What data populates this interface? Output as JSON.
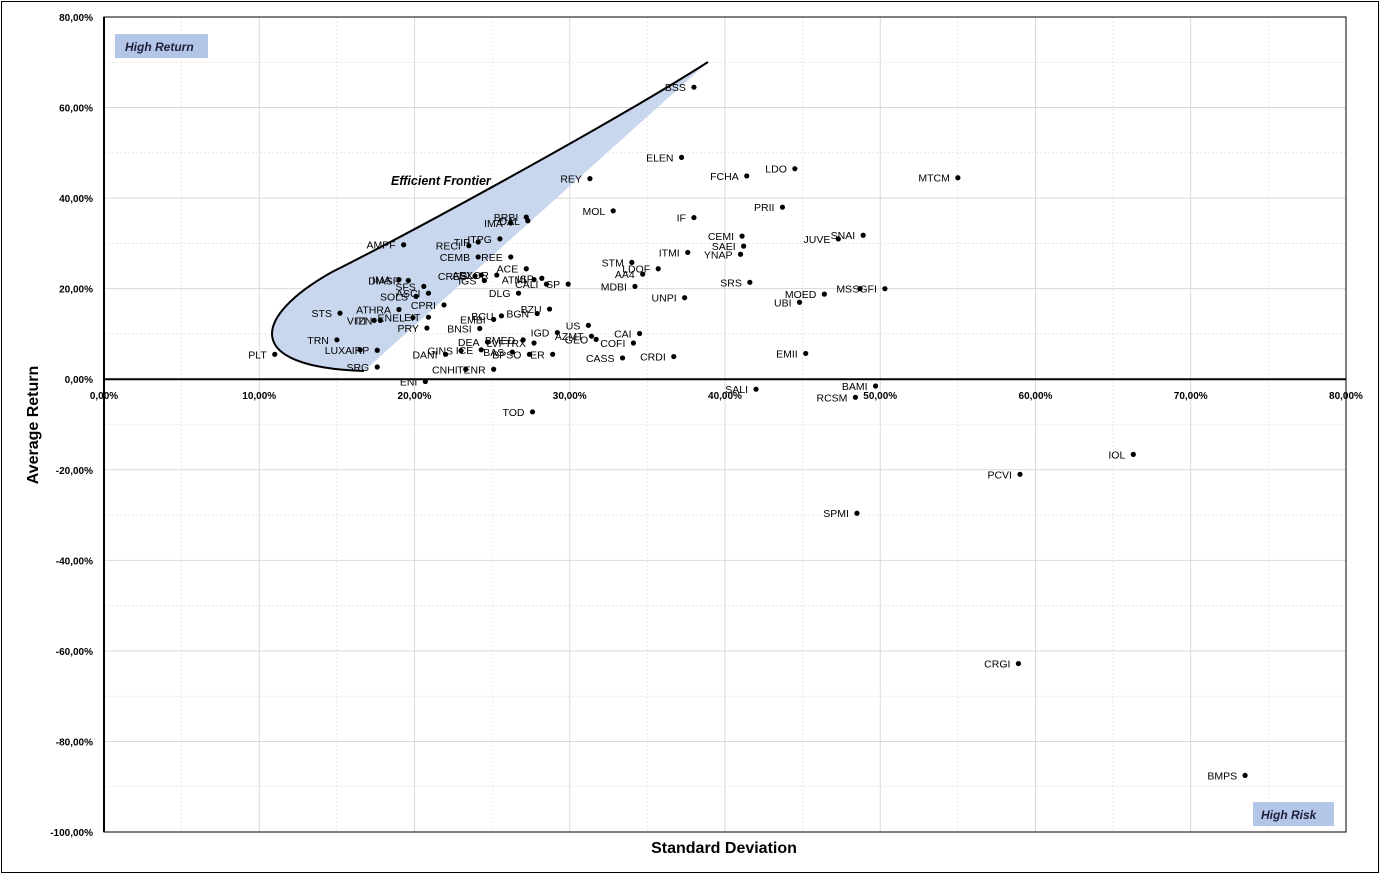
{
  "chart_data": {
    "type": "scatter",
    "xlabel": "Standard Deviation",
    "ylabel": "Average Return",
    "xlim": [
      0,
      0.8
    ],
    "ylim": [
      -1.0,
      0.8
    ],
    "x_ticks": [
      "0,00%",
      "10,00%",
      "20,00%",
      "30,00%",
      "40,00%",
      "50,00%",
      "60,00%",
      "70,00%",
      "80,00%"
    ],
    "y_ticks": [
      "80,00%",
      "60,00%",
      "40,00%",
      "20,00%",
      "0,00%",
      "-20,00%",
      "-40,00%",
      "-60,00%",
      "-80,00%",
      "-100,00%"
    ],
    "grid": true,
    "annotations": {
      "high_return": "High Return",
      "high_risk": "High Risk",
      "efficient_frontier": "Efficient Frontier"
    },
    "colors": {
      "frontier_fill": "#c9d7ee",
      "annotation_box": "#b4c6e7",
      "marker": "#000000",
      "grid": "#d9d9d9"
    },
    "points": [
      {
        "label": "BSS",
        "x": 0.38,
        "y": 0.645
      },
      {
        "label": "ELEN",
        "x": 0.372,
        "y": 0.49
      },
      {
        "label": "LDO",
        "x": 0.445,
        "y": 0.465
      },
      {
        "label": "FCHA",
        "x": 0.414,
        "y": 0.449
      },
      {
        "label": "REY",
        "x": 0.313,
        "y": 0.443
      },
      {
        "label": "MTCM",
        "x": 0.55,
        "y": 0.445
      },
      {
        "label": "MOL",
        "x": 0.328,
        "y": 0.372
      },
      {
        "label": "PRII",
        "x": 0.437,
        "y": 0.38
      },
      {
        "label": "IF",
        "x": 0.38,
        "y": 0.357
      },
      {
        "label": "BRBI",
        "x": 0.272,
        "y": 0.358
      },
      {
        "label": "IMA",
        "x": 0.262,
        "y": 0.345
      },
      {
        "label": "DAL",
        "x": 0.273,
        "y": 0.35
      },
      {
        "label": "AMPF",
        "x": 0.193,
        "y": 0.297
      },
      {
        "label": "TIP",
        "x": 0.241,
        "y": 0.303
      },
      {
        "label": "ITPG",
        "x": 0.255,
        "y": 0.31
      },
      {
        "label": "RECI",
        "x": 0.235,
        "y": 0.295
      },
      {
        "label": "CEMI",
        "x": 0.411,
        "y": 0.316
      },
      {
        "label": "JUVE",
        "x": 0.473,
        "y": 0.31
      },
      {
        "label": "SNAI",
        "x": 0.489,
        "y": 0.318
      },
      {
        "label": "SAEI",
        "x": 0.412,
        "y": 0.294
      },
      {
        "label": "CEMB",
        "x": 0.241,
        "y": 0.27
      },
      {
        "label": "REE",
        "x": 0.262,
        "y": 0.27
      },
      {
        "label": "ITMI",
        "x": 0.376,
        "y": 0.28
      },
      {
        "label": "YNAP",
        "x": 0.41,
        "y": 0.276
      },
      {
        "label": "STM",
        "x": 0.34,
        "y": 0.258
      },
      {
        "label": "LDOF",
        "x": 0.357,
        "y": 0.244
      },
      {
        "label": "ACE",
        "x": 0.272,
        "y": 0.244
      },
      {
        "label": "AA4",
        "x": 0.347,
        "y": 0.232
      },
      {
        "label": "AGL",
        "x": 0.243,
        "y": 0.23
      },
      {
        "label": "EXOR",
        "x": 0.253,
        "y": 0.23
      },
      {
        "label": "CRES",
        "x": 0.239,
        "y": 0.228
      },
      {
        "label": "IGS",
        "x": 0.245,
        "y": 0.218
      },
      {
        "label": "ATMI",
        "x": 0.277,
        "y": 0.22
      },
      {
        "label": "ISP",
        "x": 0.282,
        "y": 0.223
      },
      {
        "label": "CALI",
        "x": 0.285,
        "y": 0.21
      },
      {
        "label": "SP",
        "x": 0.299,
        "y": 0.21
      },
      {
        "label": "MDBI",
        "x": 0.342,
        "y": 0.205
      },
      {
        "label": "SRS",
        "x": 0.416,
        "y": 0.214
      },
      {
        "label": "MS",
        "x": 0.487,
        "y": 0.2
      },
      {
        "label": "SGFI",
        "x": 0.503,
        "y": 0.2
      },
      {
        "label": "MOED",
        "x": 0.464,
        "y": 0.188
      },
      {
        "label": "UNPI",
        "x": 0.374,
        "y": 0.18
      },
      {
        "label": "UBI",
        "x": 0.448,
        "y": 0.17
      },
      {
        "label": "IMA2",
        "x": 0.19,
        "y": 0.22
      },
      {
        "label": "DIASR",
        "x": 0.196,
        "y": 0.218
      },
      {
        "label": "SFS",
        "x": 0.206,
        "y": 0.205
      },
      {
        "label": "DLG",
        "x": 0.267,
        "y": 0.19
      },
      {
        "label": "SOLS",
        "x": 0.201,
        "y": 0.183
      },
      {
        "label": "ASCI",
        "x": 0.209,
        "y": 0.19
      },
      {
        "label": "CPRI",
        "x": 0.219,
        "y": 0.164
      },
      {
        "label": "ATHRA",
        "x": 0.19,
        "y": 0.154
      },
      {
        "label": "BZU",
        "x": 0.287,
        "y": 0.155
      },
      {
        "label": "STS",
        "x": 0.152,
        "y": 0.146
      },
      {
        "label": "BGN",
        "x": 0.279,
        "y": 0.145
      },
      {
        "label": "BCU",
        "x": 0.256,
        "y": 0.14
      },
      {
        "label": "EMBI",
        "x": 0.251,
        "y": 0.132
      },
      {
        "label": "ENEL",
        "x": 0.199,
        "y": 0.136
      },
      {
        "label": "EIT",
        "x": 0.209,
        "y": 0.137
      },
      {
        "label": "VITI",
        "x": 0.174,
        "y": 0.13
      },
      {
        "label": "IZN",
        "x": 0.178,
        "y": 0.13
      },
      {
        "label": "PRY",
        "x": 0.208,
        "y": 0.113
      },
      {
        "label": "BNSI",
        "x": 0.242,
        "y": 0.112
      },
      {
        "label": "US",
        "x": 0.312,
        "y": 0.119
      },
      {
        "label": "CAI",
        "x": 0.345,
        "y": 0.101
      },
      {
        "label": "IGD",
        "x": 0.292,
        "y": 0.103
      },
      {
        "label": "AZMT",
        "x": 0.314,
        "y": 0.095
      },
      {
        "label": "GEO",
        "x": 0.317,
        "y": 0.088
      },
      {
        "label": "COFI",
        "x": 0.341,
        "y": 0.08
      },
      {
        "label": "DEA",
        "x": 0.247,
        "y": 0.082
      },
      {
        "label": "BMED",
        "x": 0.27,
        "y": 0.087
      },
      {
        "label": "LVFTRX",
        "x": 0.277,
        "y": 0.08
      },
      {
        "label": "TRN",
        "x": 0.15,
        "y": 0.087
      },
      {
        "label": "LUXA",
        "x": 0.165,
        "y": 0.065
      },
      {
        "label": "IRP",
        "x": 0.176,
        "y": 0.064
      },
      {
        "label": "PLT",
        "x": 0.11,
        "y": 0.055
      },
      {
        "label": "DANI",
        "x": 0.22,
        "y": 0.055
      },
      {
        "label": "GINS",
        "x": 0.23,
        "y": 0.063
      },
      {
        "label": "ICE",
        "x": 0.243,
        "y": 0.065
      },
      {
        "label": "BAS",
        "x": 0.263,
        "y": 0.06
      },
      {
        "label": "BPSO",
        "x": 0.274,
        "y": 0.055
      },
      {
        "label": "ER",
        "x": 0.289,
        "y": 0.055
      },
      {
        "label": "CASS",
        "x": 0.334,
        "y": 0.047
      },
      {
        "label": "CRDI",
        "x": 0.367,
        "y": 0.05
      },
      {
        "label": "EMII",
        "x": 0.452,
        "y": 0.057
      },
      {
        "label": "SRG",
        "x": 0.176,
        "y": 0.027
      },
      {
        "label": "CNHI",
        "x": 0.233,
        "y": 0.022
      },
      {
        "label": "TENR",
        "x": 0.251,
        "y": 0.022
      },
      {
        "label": "ENI",
        "x": 0.207,
        "y": -0.005
      },
      {
        "label": "SALI",
        "x": 0.42,
        "y": -0.022
      },
      {
        "label": "BAMI",
        "x": 0.497,
        "y": -0.015
      },
      {
        "label": "RCSM",
        "x": 0.484,
        "y": -0.04
      },
      {
        "label": "TOD",
        "x": 0.276,
        "y": -0.072
      },
      {
        "label": "IOL",
        "x": 0.663,
        "y": -0.166
      },
      {
        "label": "PCVI",
        "x": 0.59,
        "y": -0.21
      },
      {
        "label": "SPMI",
        "x": 0.485,
        "y": -0.296
      },
      {
        "label": "CRGI",
        "x": 0.589,
        "y": -0.628
      },
      {
        "label": "BMPS",
        "x": 0.735,
        "y": -0.875
      }
    ]
  }
}
